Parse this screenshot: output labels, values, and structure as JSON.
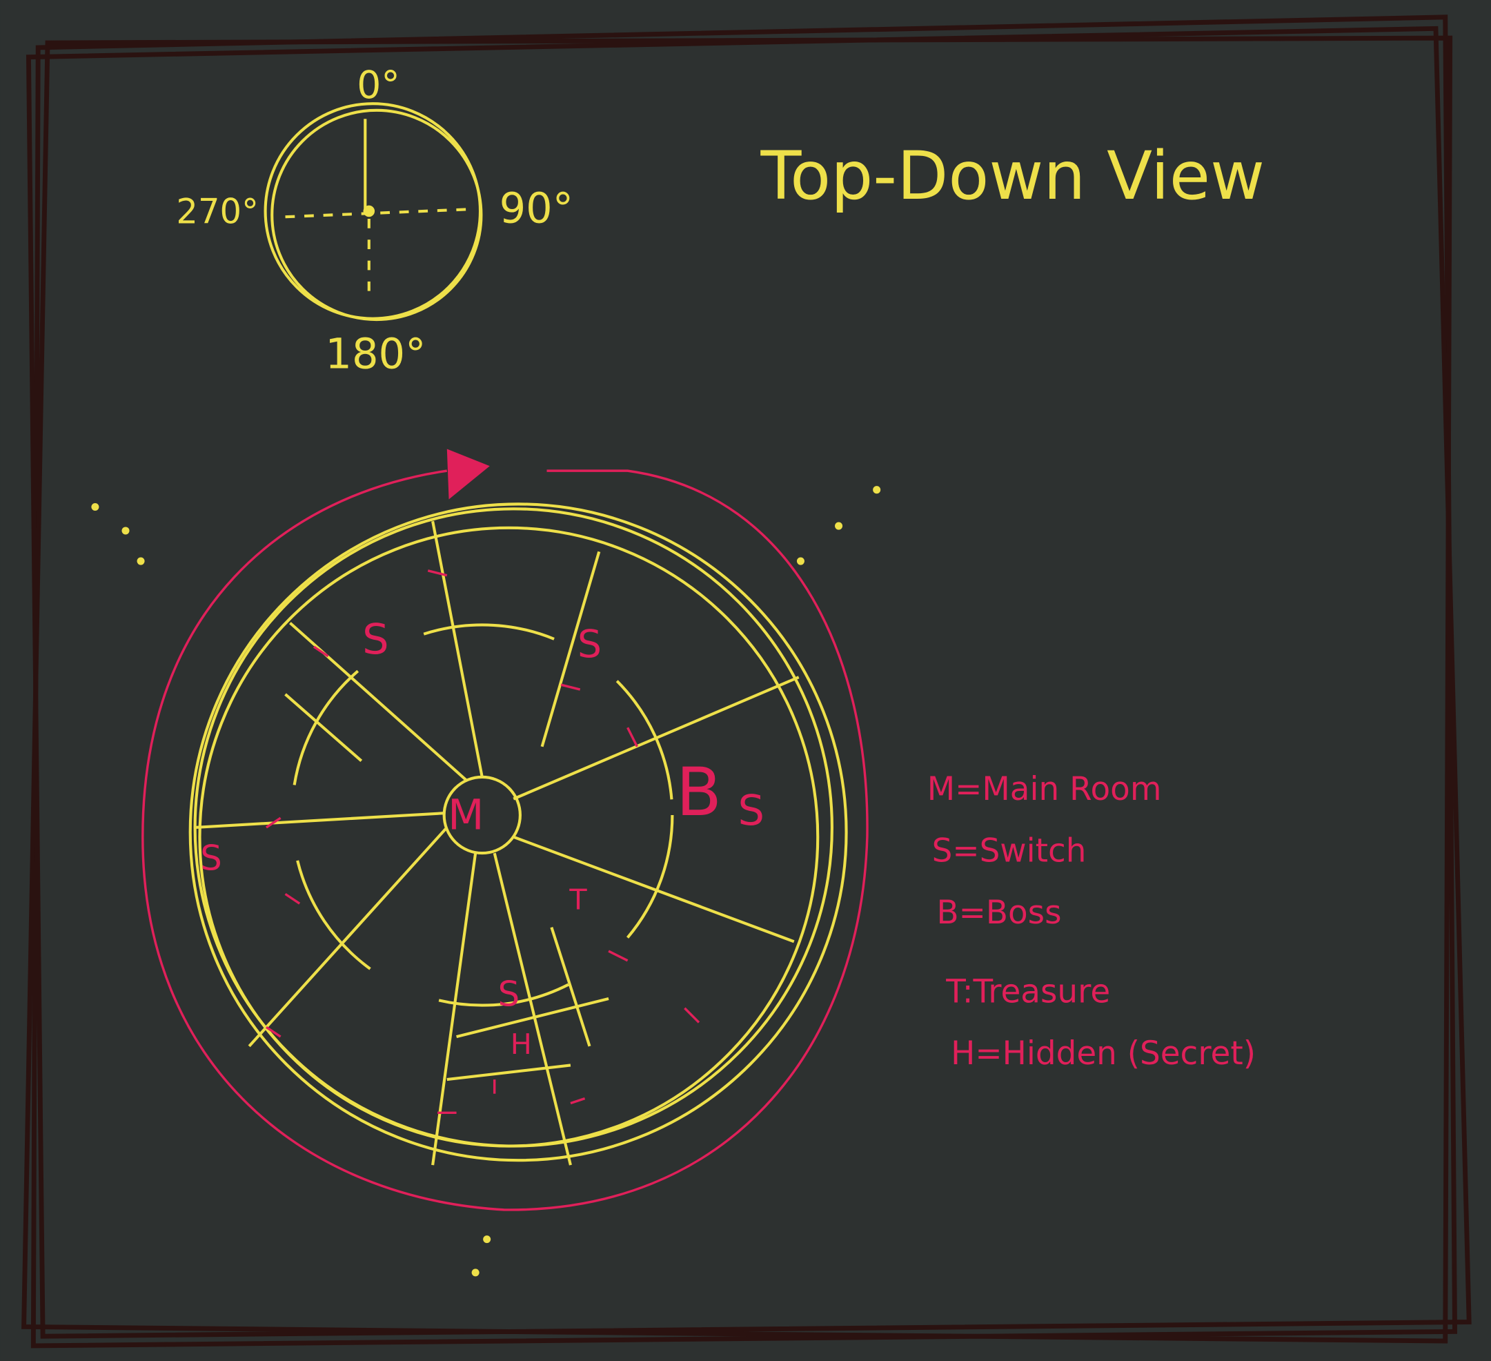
{
  "header": {
    "title": "Top-Down View"
  },
  "compass": {
    "north": "0°",
    "east": "90°",
    "south": "180°",
    "west": "270°"
  },
  "map": {
    "labels": [
      "M",
      "S",
      "S",
      "B",
      "S",
      "S",
      "T",
      "S",
      "H"
    ]
  },
  "legend": {
    "items": [
      "M=Main Room",
      "S=Switch",
      "B=Boss",
      "T:Treasure",
      "H=Hidden (Secret)"
    ]
  }
}
